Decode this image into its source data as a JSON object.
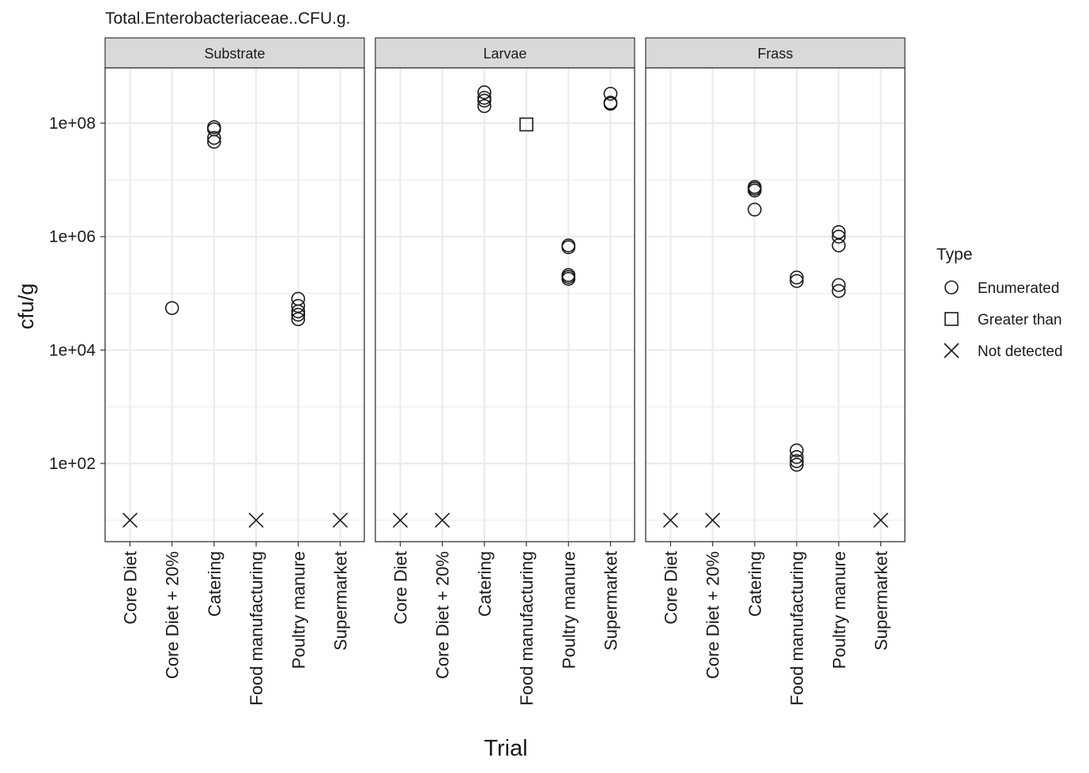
{
  "chart_data": {
    "type": "scatter",
    "title": "Total.Enterobacteriaceae..CFU.g.",
    "xlabel": "Trial",
    "ylabel": "cfu/g",
    "y_scale": "log10",
    "ylim": [
      3,
      1000000000
    ],
    "yticks": [
      100,
      10000,
      1000000,
      100000000
    ],
    "ytick_labels": [
      "1e+02",
      "1e+04",
      "1e+06",
      "1e+08"
    ],
    "grid": true,
    "legend_position": "right",
    "categories": [
      "Core Diet",
      "Core Diet + 20%",
      "Catering",
      "Food manufacturing",
      "Poultry manure",
      "Supermarket"
    ],
    "legend": {
      "title": "Type",
      "entries": [
        {
          "label": "Enumerated",
          "shape": "circle"
        },
        {
          "label": "Greater than",
          "shape": "square"
        },
        {
          "label": "Not detected",
          "shape": "cross"
        }
      ]
    },
    "facets": [
      {
        "name": "Substrate",
        "points": [
          {
            "x": "Core Diet",
            "y": 10,
            "type": "Not detected"
          },
          {
            "x": "Core Diet + 20%",
            "y": 55000,
            "type": "Enumerated"
          },
          {
            "x": "Catering",
            "y": 85000000,
            "type": "Enumerated"
          },
          {
            "x": "Catering",
            "y": 78000000,
            "type": "Enumerated"
          },
          {
            "x": "Catering",
            "y": 55000000,
            "type": "Enumerated"
          },
          {
            "x": "Catering",
            "y": 47000000,
            "type": "Enumerated"
          },
          {
            "x": "Food manufacturing",
            "y": 10,
            "type": "Not detected"
          },
          {
            "x": "Poultry manure",
            "y": 80000,
            "type": "Enumerated"
          },
          {
            "x": "Poultry manure",
            "y": 60000,
            "type": "Enumerated"
          },
          {
            "x": "Poultry manure",
            "y": 48000,
            "type": "Enumerated"
          },
          {
            "x": "Poultry manure",
            "y": 42000,
            "type": "Enumerated"
          },
          {
            "x": "Poultry manure",
            "y": 35000,
            "type": "Enumerated"
          },
          {
            "x": "Supermarket",
            "y": 10,
            "type": "Not detected"
          }
        ]
      },
      {
        "name": "Larvae",
        "points": [
          {
            "x": "Core Diet",
            "y": 10,
            "type": "Not detected"
          },
          {
            "x": "Core Diet + 20%",
            "y": 10,
            "type": "Not detected"
          },
          {
            "x": "Catering",
            "y": 350000000,
            "type": "Enumerated"
          },
          {
            "x": "Catering",
            "y": 280000000,
            "type": "Enumerated"
          },
          {
            "x": "Catering",
            "y": 250000000,
            "type": "Enumerated"
          },
          {
            "x": "Catering",
            "y": 200000000,
            "type": "Enumerated"
          },
          {
            "x": "Food manufacturing",
            "y": 95000000,
            "type": "Greater than"
          },
          {
            "x": "Poultry manure",
            "y": 700000,
            "type": "Enumerated"
          },
          {
            "x": "Poultry manure",
            "y": 650000,
            "type": "Enumerated"
          },
          {
            "x": "Poultry manure",
            "y": 210000,
            "type": "Enumerated"
          },
          {
            "x": "Poultry manure",
            "y": 195000,
            "type": "Enumerated"
          },
          {
            "x": "Poultry manure",
            "y": 180000,
            "type": "Enumerated"
          },
          {
            "x": "Supermarket",
            "y": 330000000,
            "type": "Enumerated"
          },
          {
            "x": "Supermarket",
            "y": 230000000,
            "type": "Enumerated"
          },
          {
            "x": "Supermarket",
            "y": 220000000,
            "type": "Enumerated"
          }
        ]
      },
      {
        "name": "Frass",
        "points": [
          {
            "x": "Core Diet",
            "y": 10,
            "type": "Not detected"
          },
          {
            "x": "Core Diet + 20%",
            "y": 10,
            "type": "Not detected"
          },
          {
            "x": "Catering",
            "y": 7500000,
            "type": "Enumerated"
          },
          {
            "x": "Catering",
            "y": 7000000,
            "type": "Enumerated"
          },
          {
            "x": "Catering",
            "y": 6500000,
            "type": "Enumerated"
          },
          {
            "x": "Catering",
            "y": 3000000,
            "type": "Enumerated"
          },
          {
            "x": "Food manufacturing",
            "y": 190000,
            "type": "Enumerated"
          },
          {
            "x": "Food manufacturing",
            "y": 165000,
            "type": "Enumerated"
          },
          {
            "x": "Food manufacturing",
            "y": 170,
            "type": "Enumerated"
          },
          {
            "x": "Food manufacturing",
            "y": 130,
            "type": "Enumerated"
          },
          {
            "x": "Food manufacturing",
            "y": 110,
            "type": "Enumerated"
          },
          {
            "x": "Food manufacturing",
            "y": 95,
            "type": "Enumerated"
          },
          {
            "x": "Poultry manure",
            "y": 1200000,
            "type": "Enumerated"
          },
          {
            "x": "Poultry manure",
            "y": 1000000,
            "type": "Enumerated"
          },
          {
            "x": "Poultry manure",
            "y": 700000,
            "type": "Enumerated"
          },
          {
            "x": "Poultry manure",
            "y": 140000,
            "type": "Enumerated"
          },
          {
            "x": "Poultry manure",
            "y": 110000,
            "type": "Enumerated"
          },
          {
            "x": "Supermarket",
            "y": 10,
            "type": "Not detected"
          }
        ]
      }
    ]
  }
}
